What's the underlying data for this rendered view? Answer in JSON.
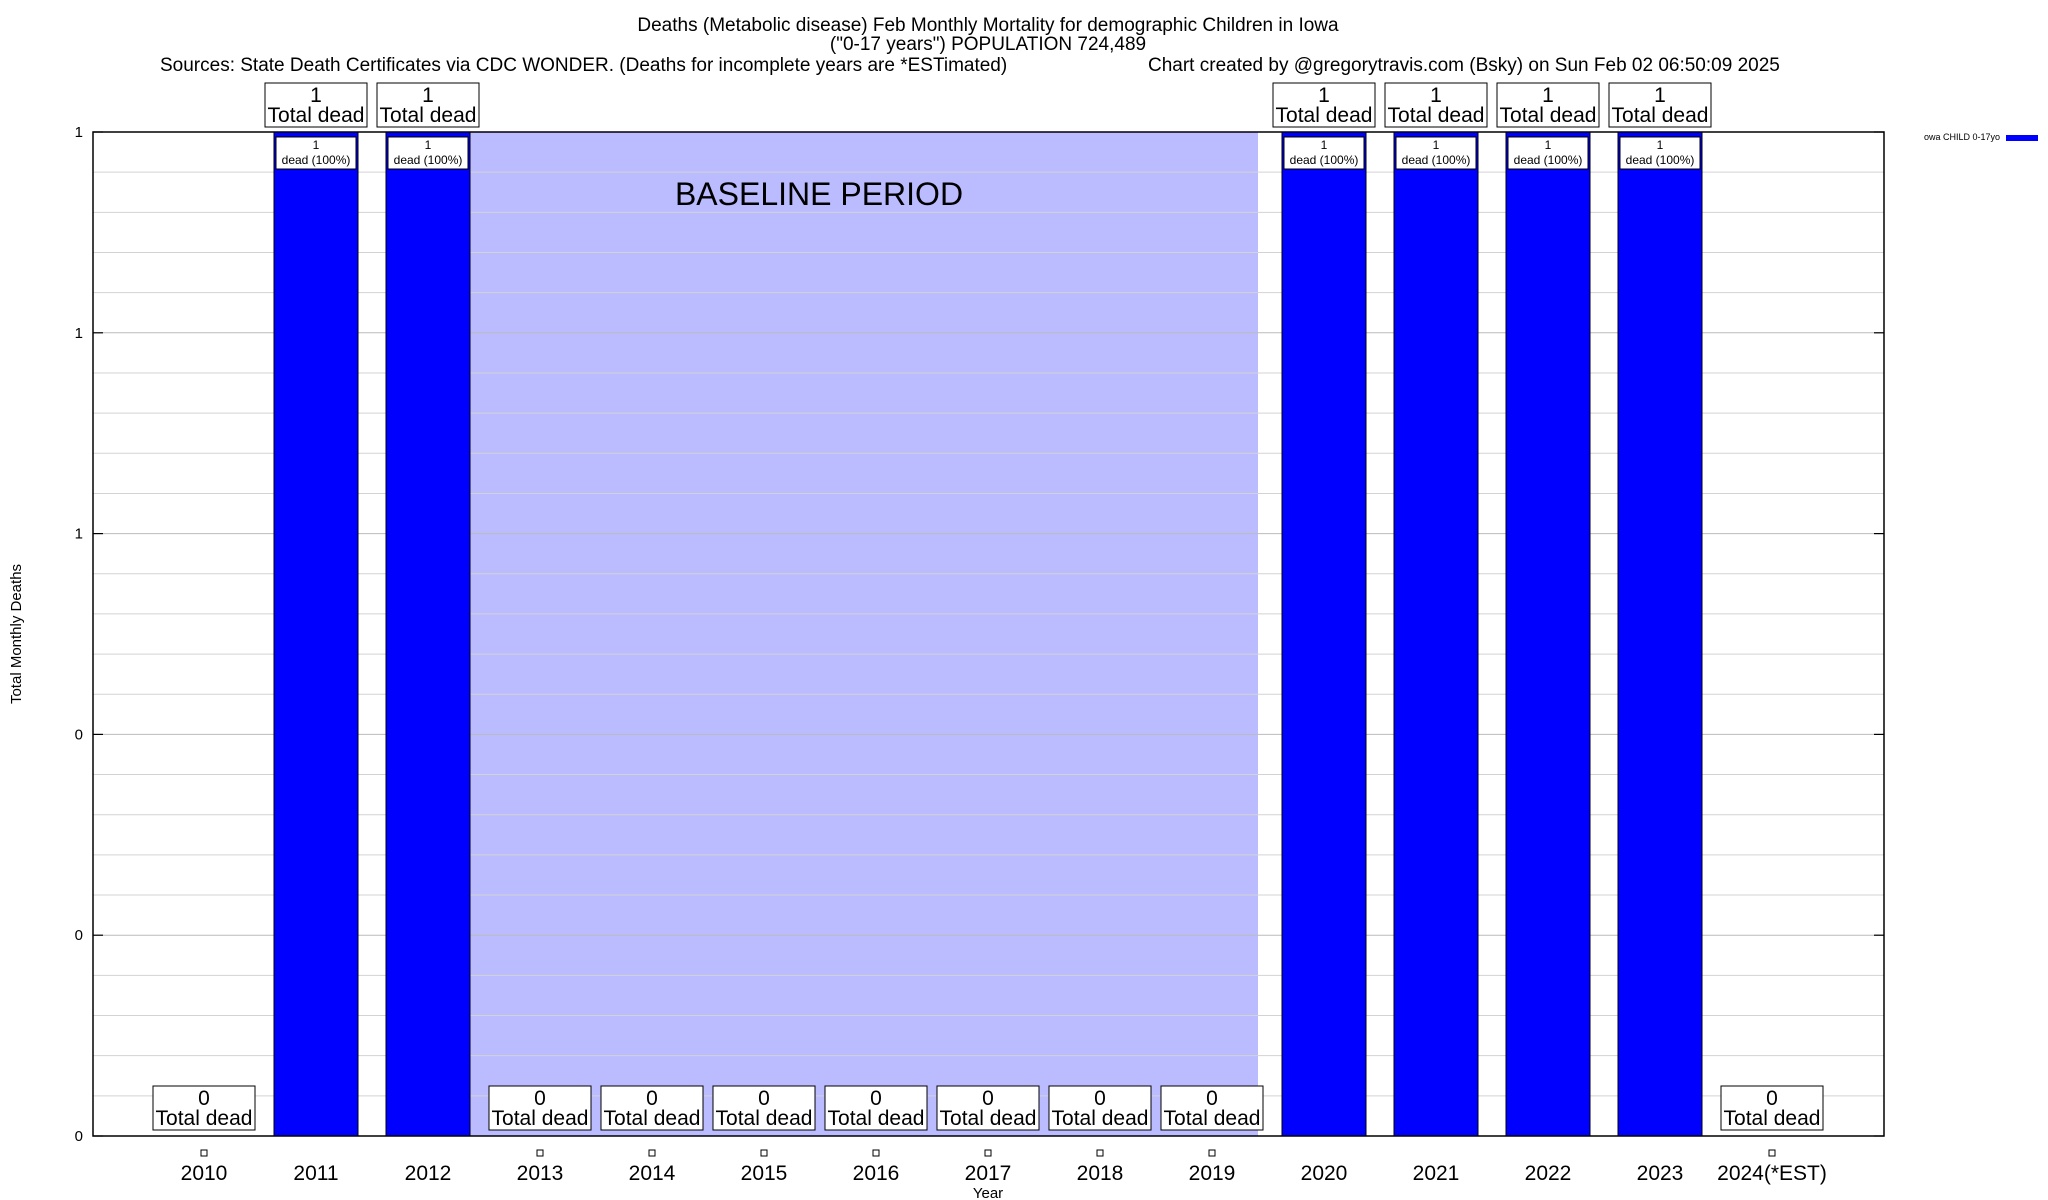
{
  "chart_data": {
    "type": "bar",
    "title": "Deaths (Metabolic disease) Feb Monthly Mortality for demographic Children in Iowa",
    "subtitle": "(\"0-17 years\") POPULATION 724,489",
    "source": "Sources: State Death Certificates via CDC WONDER. (Deaths for incomplete years are *ESTimated)",
    "credit": "Chart created by @gregorytravis.com (Bsky) on Sun Feb 02 06:50:09 2025",
    "xlabel": "Year",
    "ylabel": "Total Monthly Deaths",
    "categories": [
      "2010",
      "2011",
      "2012",
      "2013",
      "2014",
      "2015",
      "2016",
      "2017",
      "2018",
      "2019",
      "2020",
      "2021",
      "2022",
      "2023",
      "2024(*EST)"
    ],
    "series": [
      {
        "name": "owa CHILD 0-17yo",
        "values": [
          0,
          1,
          1,
          0,
          0,
          0,
          0,
          0,
          0,
          0,
          1,
          1,
          1,
          1,
          0
        ],
        "color": "#0000ff"
      }
    ],
    "ylim": [
      0,
      1
    ],
    "ytick_values": [
      0,
      0.2,
      0.4,
      0.6,
      0.8,
      1.0
    ],
    "ytick_labels": [
      "0",
      "0",
      "0",
      "1",
      "1",
      "1"
    ],
    "total_labels": {
      "values": [
        "0",
        "1",
        "1",
        "0",
        "0",
        "0",
        "0",
        "0",
        "0",
        "0",
        "1",
        "1",
        "1",
        "1",
        "0"
      ],
      "caption": "Total dead"
    },
    "bar_inner_labels": {
      "count": "1",
      "text": "dead (100%)"
    },
    "baseline": {
      "label": "BASELINE PERIOD",
      "from": "2012",
      "to": "2019",
      "color": "#bbbbff"
    },
    "grid": true,
    "legend_position": "top-right"
  }
}
